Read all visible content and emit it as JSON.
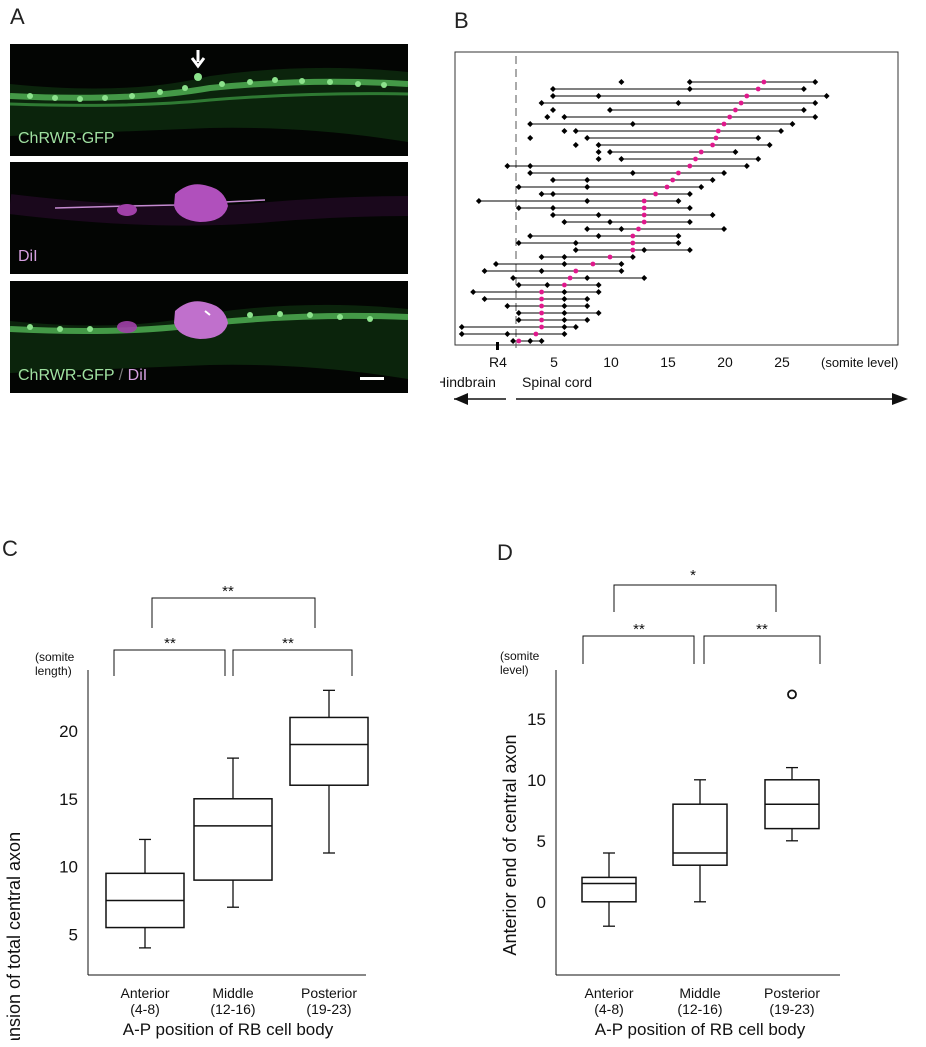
{
  "panel_labels": {
    "a": "A",
    "b": "B",
    "c": "C",
    "d": "D"
  },
  "panel_a": {
    "label_top": "ChRWR-GFP",
    "label_middle": "DiI",
    "label_bottom_green": "ChRWR-GFP",
    "label_bottom_sep": "/",
    "label_bottom_magenta": "DiI",
    "colors": {
      "gfp": "#7ed67e",
      "dii": "#c060c8",
      "background": "#030503"
    }
  },
  "panel_b": {
    "x_ticks": [
      "R4",
      "5",
      "10",
      "15",
      "20",
      "25"
    ],
    "x_unit": "(somite level)",
    "left_region": "Hindbrain",
    "right_region": "Spinal cord",
    "chart_data": {
      "type": "line",
      "description_of_marks": "horizontal ranges of RB axons",
      "xlim": [
        -3,
        31
      ],
      "colors": {
        "range": "#000000",
        "cell_body": "#e0188c"
      },
      "axons": [
        {
          "start": 17,
          "end": 28,
          "soma": 23.5,
          "mid": 11
        },
        {
          "start": 5,
          "end": 27,
          "soma": 23,
          "mid": 17
        },
        {
          "start": 5,
          "end": 29,
          "soma": 22,
          "mid": 9
        },
        {
          "start": 4,
          "end": 28,
          "soma": 21.5,
          "mid": 16
        },
        {
          "start": 10,
          "end": 27,
          "soma": 21,
          "mid": 5
        },
        {
          "start": 6,
          "end": 28,
          "soma": 20.5,
          "mid": 4.5
        },
        {
          "start": 3,
          "end": 26,
          "soma": 20,
          "mid": 12
        },
        {
          "start": 7,
          "end": 25,
          "soma": 19.5,
          "mid": 6
        },
        {
          "start": 8,
          "end": 23,
          "soma": 19.3,
          "mid": 3
        },
        {
          "start": 9,
          "end": 24,
          "soma": 19,
          "mid": 7
        },
        {
          "start": 10,
          "end": 21,
          "soma": 18,
          "mid": 9
        },
        {
          "start": 11,
          "end": 23,
          "soma": 17.5,
          "mid": 9
        },
        {
          "start": 1,
          "end": 22,
          "soma": 17,
          "mid": 3
        },
        {
          "start": 3,
          "end": 20,
          "soma": 16,
          "mid": 12
        },
        {
          "start": 5,
          "end": 19,
          "soma": 15.5,
          "mid": 8
        },
        {
          "start": 2,
          "end": 18,
          "soma": 15,
          "mid": 8
        },
        {
          "start": 4,
          "end": 17,
          "soma": 14,
          "mid": 5
        },
        {
          "start": -1.5,
          "end": 16,
          "soma": 13,
          "mid": 8
        },
        {
          "start": 2,
          "end": 17,
          "soma": 13,
          "mid": 5
        },
        {
          "start": 5,
          "end": 19,
          "soma": 13,
          "mid": 9
        },
        {
          "start": 6,
          "end": 17,
          "soma": 13,
          "mid": 10
        },
        {
          "start": 8,
          "end": 20,
          "soma": 12.5,
          "mid": 11
        },
        {
          "start": 3,
          "end": 16,
          "soma": 12,
          "mid": 9
        },
        {
          "start": 2,
          "end": 16,
          "soma": 12,
          "mid": 7
        },
        {
          "start": 7,
          "end": 17,
          "soma": 12,
          "mid": 13
        },
        {
          "start": 4,
          "end": 12,
          "soma": 10,
          "mid": 6
        },
        {
          "start": 0,
          "end": 11,
          "soma": 8.5,
          "mid": 6
        },
        {
          "start": -1,
          "end": 11,
          "soma": 7,
          "mid": 4
        },
        {
          "start": 1.5,
          "end": 13,
          "soma": 6.5,
          "mid": 8
        },
        {
          "start": 2,
          "end": 9,
          "soma": 6,
          "mid": 4.5
        },
        {
          "start": -2,
          "end": 9,
          "soma": 4,
          "mid": 6
        },
        {
          "start": -1,
          "end": 8,
          "soma": 4,
          "mid": 6
        },
        {
          "start": 1,
          "end": 8,
          "soma": 4,
          "mid": 6
        },
        {
          "start": 2,
          "end": 9,
          "soma": 4,
          "mid": 6
        },
        {
          "start": 2,
          "end": 8,
          "soma": 4,
          "mid": 6
        },
        {
          "start": -3,
          "end": 7,
          "soma": 4,
          "mid": 6
        },
        {
          "start": -3,
          "end": 6,
          "soma": 3.5,
          "mid": 1
        },
        {
          "start": 1.5,
          "end": 4,
          "soma": 2,
          "mid": 3
        }
      ]
    }
  },
  "panel_c": {
    "ylabel_unit": [
      "(somite",
      "length)"
    ],
    "ylabel": "Expansion of total central axon",
    "xlabel": "A-P position of RB cell body",
    "categories": [
      [
        "Anterior",
        "(4-8)"
      ],
      [
        "Middle",
        "(12-16)"
      ],
      [
        "Posterior",
        "(19-23)"
      ]
    ],
    "y_ticks": [
      "5",
      "10",
      "15",
      "20"
    ],
    "significance": [
      "**",
      "**",
      "**"
    ],
    "chart_data": {
      "type": "box",
      "ylim": [
        2,
        24.5
      ],
      "boxes": [
        {
          "category": "Anterior (4-8)",
          "whisker_low": 4,
          "q1": 5.5,
          "median": 7.5,
          "q3": 9.5,
          "whisker_high": 12
        },
        {
          "category": "Middle (12-16)",
          "whisker_low": 7,
          "q1": 9,
          "median": 13,
          "q3": 15,
          "whisker_high": 18
        },
        {
          "category": "Posterior (19-23)",
          "whisker_low": 11,
          "q1": 16,
          "median": 19,
          "q3": 21,
          "whisker_high": 23
        }
      ]
    }
  },
  "panel_d": {
    "ylabel_unit": [
      "(somite",
      "level)"
    ],
    "ylabel": "Anterior end of central axon",
    "xlabel": "A-P position of RB cell body",
    "categories": [
      [
        "Anterior",
        "(4-8)"
      ],
      [
        "Middle",
        "(12-16)"
      ],
      [
        "Posterior",
        "(19-23)"
      ]
    ],
    "y_ticks": [
      "0",
      "5",
      "10",
      "15"
    ],
    "significance": [
      "**",
      "**",
      "*"
    ],
    "chart_data": {
      "type": "box",
      "ylim": [
        -6,
        19
      ],
      "boxes": [
        {
          "category": "Anterior (4-8)",
          "whisker_low": -2,
          "q1": 0,
          "median": 1.5,
          "q3": 2,
          "whisker_high": 4
        },
        {
          "category": "Middle (12-16)",
          "whisker_low": 0,
          "q1": 3,
          "median": 4,
          "q3": 8,
          "whisker_high": 10
        },
        {
          "category": "Posterior (19-23)",
          "whisker_low": 5,
          "q1": 6,
          "median": 8,
          "q3": 10,
          "whisker_high": 11,
          "outliers": [
            17
          ]
        }
      ]
    }
  }
}
